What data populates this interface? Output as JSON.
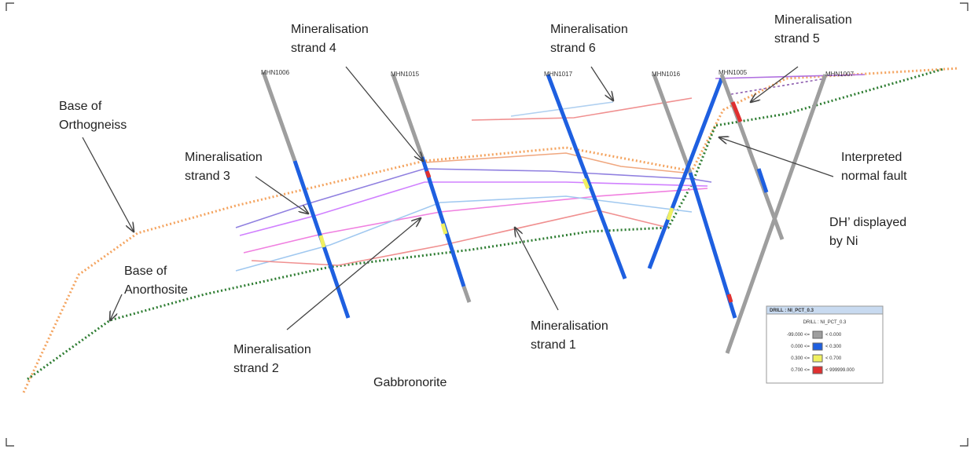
{
  "labels": [
    {
      "lines": [
        "Mineralisation",
        "strand 4"
      ]
    },
    {
      "lines": [
        "Mineralisation",
        "strand 6"
      ]
    },
    {
      "lines": [
        "Mineralisation",
        "strand 5"
      ]
    },
    {
      "lines": [
        "Base of",
        "Orthogneiss"
      ]
    },
    {
      "lines": [
        "Mineralisation",
        "strand 3"
      ]
    },
    {
      "lines": [
        "Interpreted",
        "normal fault"
      ]
    },
    {
      "lines": [
        "DH’ displayed",
        "by Ni"
      ]
    },
    {
      "lines": [
        "Base of",
        "Anorthosite"
      ]
    },
    {
      "lines": [
        "Mineralisation",
        "strand 2"
      ]
    },
    {
      "lines": [
        "Mineralisation",
        "strand 1"
      ]
    },
    {
      "lines": [
        "Gabbronorite"
      ]
    }
  ],
  "drillholes": [
    "MHN1006",
    "MHN1015",
    "MHN1017",
    "MHN1016",
    "MHN1005",
    "MHN1007"
  ],
  "legend": {
    "title": "DRILL : NI_PCT_0.3",
    "subtitle": "DRILL : NI_PCT_0.3",
    "rows": [
      [
        "-99.000 <=",
        "< 0.000"
      ],
      [
        "0.000 <=",
        "< 0.300"
      ],
      [
        "0.300 <=",
        "< 0.700"
      ],
      [
        "0.700 <=",
        "< 999999.000"
      ]
    ]
  }
}
